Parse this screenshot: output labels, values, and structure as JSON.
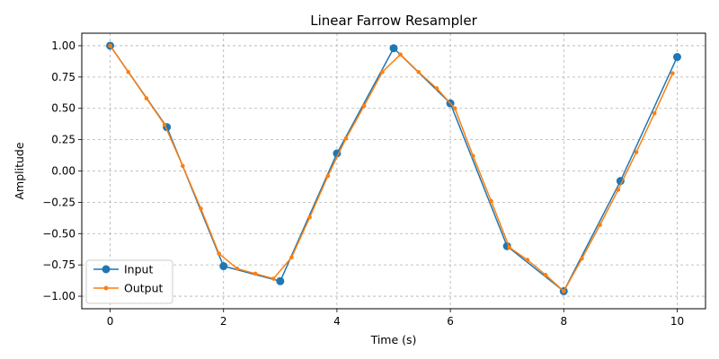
{
  "chart_data": {
    "type": "line",
    "title": "Linear Farrow Resampler",
    "xlabel": "Time (s)",
    "ylabel": "Amplitude",
    "xlim": [
      -0.5,
      10.5
    ],
    "ylim": [
      -1.1,
      1.1
    ],
    "xticks": [
      0,
      2,
      4,
      6,
      8,
      10
    ],
    "xtick_labels": [
      "0",
      "2",
      "4",
      "6",
      "8",
      "10"
    ],
    "yticks": [
      -1.0,
      -0.75,
      -0.5,
      -0.25,
      0.0,
      0.25,
      0.5,
      0.75,
      1.0
    ],
    "ytick_labels": [
      "−1.00",
      "−0.75",
      "−0.50",
      "−0.25",
      "0.00",
      "0.25",
      "0.50",
      "0.75",
      "1.00"
    ],
    "grid": true,
    "legend_position": "lower-left",
    "series": [
      {
        "name": "Input",
        "color": "#1f77b4",
        "marker": "circle",
        "x": [
          0,
          1,
          2,
          3,
          4,
          5,
          6,
          7,
          8,
          9,
          10
        ],
        "y": [
          1.0,
          0.35,
          -0.76,
          -0.88,
          0.14,
          0.98,
          0.54,
          -0.6,
          -0.96,
          -0.08,
          0.91
        ]
      },
      {
        "name": "Output",
        "color": "#ff7f0e",
        "marker": "small-circle",
        "x": [
          0,
          0.32,
          0.64,
          0.96,
          1.28,
          1.6,
          1.92,
          2.24,
          2.56,
          2.88,
          3.2,
          3.52,
          3.84,
          4.16,
          4.48,
          4.8,
          5.12,
          5.44,
          5.76,
          6.08,
          6.4,
          6.72,
          7.04,
          7.36,
          7.68,
          8.0,
          8.32,
          8.64,
          8.96,
          9.28,
          9.6,
          9.92
        ],
        "y": [
          1.0,
          0.79,
          0.58,
          0.37,
          0.04,
          -0.3,
          -0.66,
          -0.78,
          -0.82,
          -0.86,
          -0.69,
          -0.37,
          -0.04,
          0.26,
          0.52,
          0.79,
          0.93,
          0.79,
          0.66,
          0.5,
          0.12,
          -0.24,
          -0.61,
          -0.71,
          -0.83,
          -0.96,
          -0.7,
          -0.43,
          -0.15,
          0.15,
          0.46,
          0.78
        ]
      }
    ]
  }
}
